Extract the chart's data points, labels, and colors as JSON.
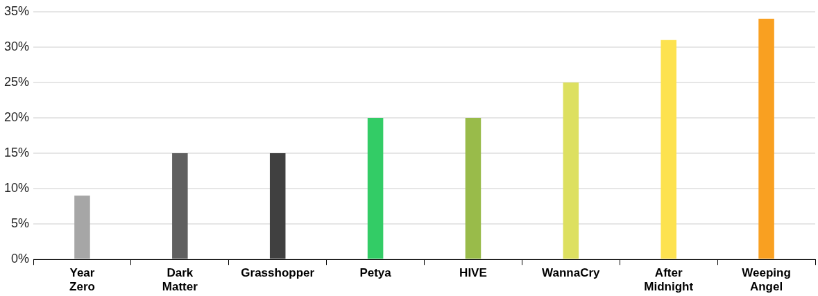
{
  "chart_data": {
    "type": "bar",
    "categories": [
      "Year Zero",
      "Dark Matter",
      "Grasshopper",
      "Petya",
      "HIVE",
      "WannaCry",
      "After Midnight",
      "Weeping Angel"
    ],
    "values": [
      9,
      15,
      15,
      20,
      20,
      25,
      31,
      34
    ],
    "colors": [
      "#a6a6a6",
      "#606060",
      "#404040",
      "#33cc66",
      "#99bb4a",
      "#dde060",
      "#fde24f",
      "#f9a021"
    ],
    "ylim": [
      0,
      35
    ],
    "yticks": [
      {
        "value": 0,
        "label": "0%"
      },
      {
        "value": 5,
        "label": "5%"
      },
      {
        "value": 10,
        "label": "10%"
      },
      {
        "value": 15,
        "label": "15%"
      },
      {
        "value": 20,
        "label": "20%"
      },
      {
        "value": 25,
        "label": "25%"
      },
      {
        "value": 30,
        "label": "30%"
      },
      {
        "value": 35,
        "label": "35%"
      }
    ],
    "grid": "y",
    "legend": false
  }
}
